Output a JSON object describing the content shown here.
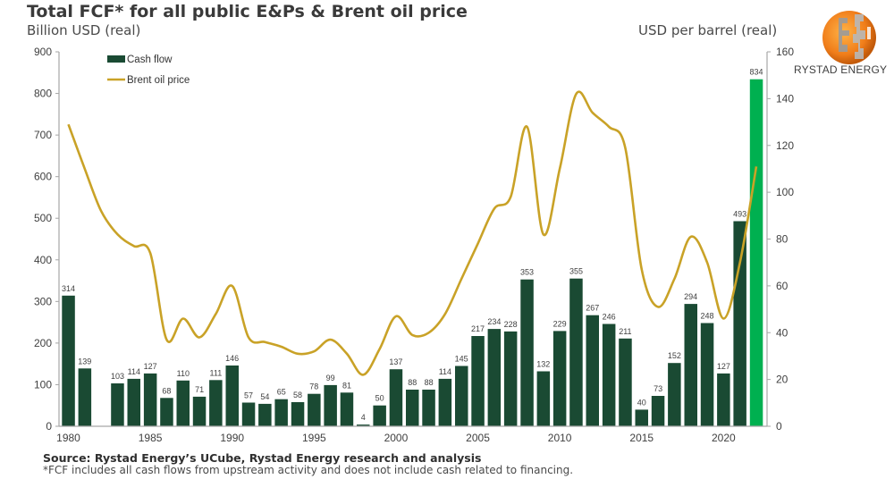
{
  "title": "Total FCF* for all public E&Ps & Brent oil price",
  "left_axis_label": "Billion USD (real)",
  "right_axis_label": "USD per barrel (real)",
  "logo": {
    "icon": "rystad-globe-icon",
    "text": "RYSTAD ENERGY"
  },
  "source": "Source: Rystad Energy’s UCube, Rystad Energy research and analysis",
  "footnote": "*FCF includes all cash flows from upstream activity and does not include cash related to financing.",
  "colors": {
    "cash_flow": "#1a4a33",
    "cash_flow_highlight": "#00b050",
    "brent": "#c9a227",
    "axis": "#a6a6a6"
  },
  "chart_data": {
    "type": "bar+line",
    "title": "Total FCF* for all public E&Ps & Brent oil price",
    "xlabel": "",
    "ylabel": "Billion USD (real)",
    "y2label": "USD per barrel (real)",
    "ylim": [
      0,
      900
    ],
    "y2lim": [
      0,
      160
    ],
    "yticks": [
      0,
      100,
      200,
      300,
      400,
      500,
      600,
      700,
      800,
      900
    ],
    "y2ticks": [
      0,
      20,
      40,
      60,
      80,
      100,
      120,
      140,
      160
    ],
    "xticks": [
      1980,
      1985,
      1990,
      1995,
      2000,
      2005,
      2010,
      2015,
      2020
    ],
    "grid": false,
    "legend": {
      "position": "top-left",
      "entries": [
        "Cash flow",
        "Brent oil price"
      ]
    },
    "categories": [
      1980,
      1981,
      1982,
      1983,
      1984,
      1985,
      1986,
      1987,
      1988,
      1989,
      1990,
      1991,
      1992,
      1993,
      1994,
      1995,
      1996,
      1997,
      1998,
      1999,
      2000,
      2001,
      2002,
      2003,
      2004,
      2005,
      2006,
      2007,
      2008,
      2009,
      2010,
      2011,
      2012,
      2013,
      2014,
      2015,
      2016,
      2017,
      2018,
      2019,
      2020,
      2021,
      2022
    ],
    "series": [
      {
        "name": "Cash flow",
        "type": "bar",
        "axis": "left",
        "highlight_last": true,
        "values": [
          314,
          139,
          null,
          103,
          114,
          127,
          68,
          110,
          71,
          111,
          146,
          57,
          54,
          65,
          58,
          78,
          99,
          81,
          4,
          50,
          137,
          88,
          88,
          114,
          145,
          217,
          234,
          228,
          353,
          132,
          229,
          355,
          267,
          246,
          211,
          40,
          73,
          152,
          294,
          248,
          127,
          493,
          834
        ]
      },
      {
        "name": "Brent oil price",
        "type": "line",
        "axis": "right",
        "values": [
          129,
          110,
          92,
          82,
          77,
          74,
          37,
          46,
          38,
          48,
          60,
          38,
          36,
          34,
          31,
          32,
          37,
          31,
          22,
          33,
          47,
          39,
          40,
          48,
          63,
          78,
          93,
          98,
          128,
          82,
          110,
          142,
          134,
          128,
          119,
          67,
          51,
          63,
          81,
          70,
          46,
          70,
          111
        ]
      }
    ]
  }
}
